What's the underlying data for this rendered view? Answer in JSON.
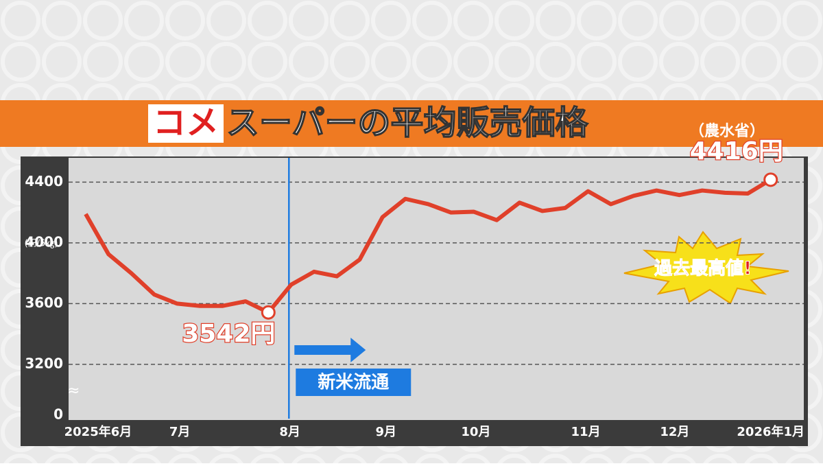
{
  "chart_data": {
    "type": "line",
    "title_highlight": "コメ",
    "title": "スーパーの平均販売価格",
    "source": "（農水省）",
    "y_unit": "(円/5㎏)",
    "annotation": "過去最高値!",
    "vline_label": "新米流通",
    "vline_x": 8.9,
    "x": [
      0,
      1,
      2,
      3,
      4,
      5,
      6,
      7,
      8,
      9,
      10,
      11,
      12,
      13,
      14,
      15,
      16,
      17,
      18,
      19,
      20,
      21,
      22,
      23,
      24,
      25,
      26,
      27,
      28,
      29,
      30
    ],
    "xlim": [
      -0.75,
      31.45
    ],
    "xticks": [
      {
        "value": 0.54,
        "label": "2025年6月"
      },
      {
        "value": 4.12,
        "label": "7月"
      },
      {
        "value": 8.94,
        "label": "8月"
      },
      {
        "value": 13.15,
        "label": "9月"
      },
      {
        "value": 17.09,
        "label": "10月"
      },
      {
        "value": 21.9,
        "label": "11月"
      },
      {
        "value": 25.8,
        "label": "12月"
      },
      {
        "value": 30,
        "label": "2026年1月"
      }
    ],
    "ylim": [
      2865,
      4560
    ],
    "yticks": [
      0,
      3200,
      3600,
      4000,
      4400
    ],
    "axis_break": true,
    "grid": true,
    "series": [
      {
        "color": "#e0402a",
        "values": [
          4190,
          3925,
          3800,
          3660,
          3600,
          3585,
          3585,
          3615,
          3542,
          3725,
          3810,
          3780,
          3890,
          4170,
          4290,
          4255,
          4200,
          4205,
          4150,
          4265,
          4210,
          4230,
          4340,
          4255,
          4310,
          4345,
          4315,
          4345,
          4330,
          4325,
          4416
        ],
        "value_labels": [
          null,
          null,
          null,
          null,
          null,
          null,
          null,
          null,
          "3542円",
          null,
          null,
          null,
          null,
          null,
          null,
          null,
          null,
          null,
          null,
          null,
          null,
          null,
          null,
          null,
          null,
          null,
          null,
          null,
          null,
          null,
          "4416円"
        ]
      }
    ]
  }
}
